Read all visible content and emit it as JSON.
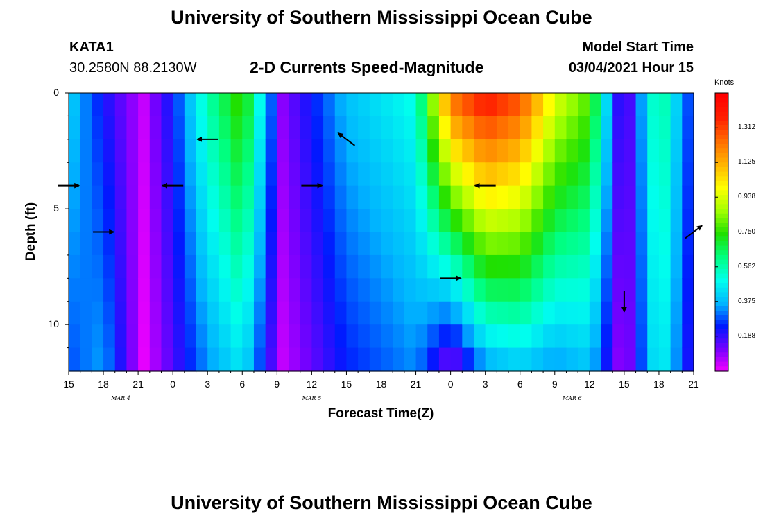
{
  "header": {
    "title": "University of Southern Mississippi Ocean Cube",
    "station": "KATA1",
    "coords": "30.2580N 88.2130W",
    "subtitle": "2-D Currents Speed-Magnitude",
    "model_label": "Model Start Time",
    "model_time": "03/04/2021 Hour 15"
  },
  "footer": {
    "title": "University of Southern Mississippi Ocean Cube"
  },
  "colorbar": {
    "unit": "Knots",
    "ticks": [
      "1.312",
      "1.125",
      "0.938",
      "0.750",
      "0.562",
      "0.375",
      "0.188"
    ],
    "colors": [
      "#ff00ff",
      "#7a00ff",
      "#0018ff",
      "#00b4ff",
      "#00ffee",
      "#00ff80",
      "#20e000",
      "#a0ff00",
      "#ffff00",
      "#ffb400",
      "#ff6e00",
      "#ff2000",
      "#ff0000"
    ]
  },
  "chart_data": {
    "type": "heatmap",
    "title": "2-D Currents Speed-Magnitude",
    "xlabel": "Forecast Time(Z)",
    "ylabel": "Depth (ft)",
    "x_ticks": [
      "15",
      "18",
      "21",
      "0",
      "3",
      "6",
      "9",
      "12",
      "15",
      "18",
      "21",
      "0",
      "3",
      "6",
      "9",
      "12",
      "15",
      "18",
      "21"
    ],
    "x_hours": [
      0,
      3,
      6,
      9,
      12,
      15,
      18,
      21,
      24,
      27,
      30,
      33,
      36,
      39,
      42,
      45,
      48,
      51,
      54
    ],
    "date_labels": [
      {
        "label": "MAR 4",
        "hour": 4.5
      },
      {
        "label": "MAR 5",
        "hour": 21
      },
      {
        "label": "MAR 6",
        "hour": 43.5
      }
    ],
    "y_ticks": [
      "0",
      "5",
      "10"
    ],
    "ylim": [
      0,
      12
    ],
    "depths_ft": [
      0,
      1,
      2,
      3,
      4,
      5,
      6,
      7,
      8,
      9,
      10,
      11,
      12
    ],
    "column_speeds_knots": [
      {
        "hour": 0,
        "top": 0.38,
        "bottom": 0.25
      },
      {
        "hour": 3,
        "top": 0.2,
        "bottom": 0.32
      },
      {
        "hour": 6.5,
        "top": 0.05,
        "bottom": 0.02
      },
      {
        "hour": 9,
        "top": 0.22,
        "bottom": 0.15
      },
      {
        "hour": 12,
        "top": 0.5,
        "bottom": 0.3
      },
      {
        "hour": 15,
        "top": 0.7,
        "bottom": 0.4
      },
      {
        "hour": 18.5,
        "top": 0.1,
        "bottom": 0.05
      },
      {
        "hour": 24,
        "top": 0.35,
        "bottom": 0.22
      },
      {
        "hour": 30,
        "top": 0.45,
        "bottom": 0.3
      },
      {
        "hour": 33,
        "top": 1.1,
        "bottom": 0.08
      },
      {
        "hour": 36,
        "top": 1.25,
        "bottom": 0.3
      },
      {
        "hour": 39,
        "top": 1.15,
        "bottom": 0.35
      },
      {
        "hour": 42,
        "top": 0.85,
        "bottom": 0.3
      },
      {
        "hour": 45,
        "top": 0.7,
        "bottom": 0.35
      },
      {
        "hour": 48,
        "top": 0.08,
        "bottom": 0.05
      },
      {
        "hour": 51,
        "top": 0.55,
        "bottom": 0.45
      },
      {
        "hour": 54,
        "top": 0.2,
        "bottom": 0.15
      }
    ],
    "vectors": [
      {
        "hour": 0,
        "depth": 4,
        "dir": "east"
      },
      {
        "hour": 3,
        "depth": 6,
        "dir": "east"
      },
      {
        "hour": 9,
        "depth": 4,
        "dir": "west"
      },
      {
        "hour": 12,
        "depth": 2,
        "dir": "west"
      },
      {
        "hour": 21,
        "depth": 4,
        "dir": "east"
      },
      {
        "hour": 24,
        "depth": 2,
        "dir": "northwest"
      },
      {
        "hour": 33,
        "depth": 8,
        "dir": "east"
      },
      {
        "hour": 36,
        "depth": 4,
        "dir": "west"
      },
      {
        "hour": 48,
        "depth": 9,
        "dir": "south"
      },
      {
        "hour": 54,
        "depth": 6,
        "dir": "northeast"
      }
    ]
  }
}
